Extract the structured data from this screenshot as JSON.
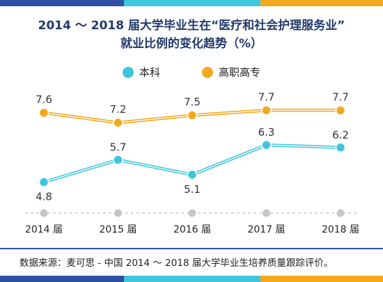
{
  "colors": {
    "accent_blue": "#2f4fa2",
    "accent_cyan": "#3fc6dd",
    "accent_orange": "#f5a81c",
    "title": "#233a6b"
  },
  "title_lines": [
    "2014 ～ 2018 届大学毕业生在“医疗和社会护理服务业”",
    "就业比例的变化趋势（%）"
  ],
  "source": "数据来源：麦可思 - 中国 2014 ～ 2018 届大学毕业生培养质量跟踪评价。",
  "chart_data": {
    "type": "line",
    "title": "2014 ～ 2018 届大学毕业生在“医疗和社会护理服务业”就业比例的变化趋势（%）",
    "categories": [
      "2014 届",
      "2015 届",
      "2016 届",
      "2017 届",
      "2018 届"
    ],
    "series": [
      {
        "name": "本科",
        "values": [
          4.8,
          5.7,
          5.1,
          6.3,
          6.2
        ],
        "color": "#3fc6dd"
      },
      {
        "name": "高职高专",
        "values": [
          7.6,
          7.2,
          7.5,
          7.7,
          7.7
        ],
        "color": "#f5a81c"
      }
    ],
    "ylim": [
      4.0,
      8.5
    ],
    "grid": false,
    "legend": "top-center"
  }
}
